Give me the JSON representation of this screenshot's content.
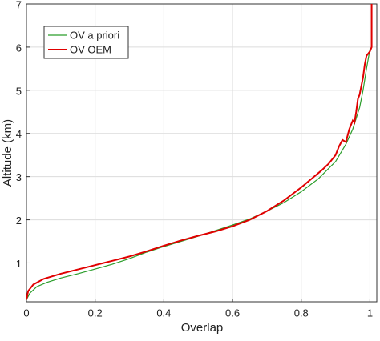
{
  "chart_data": {
    "type": "line",
    "xlabel": "Overlap",
    "ylabel": "Altitude (km)",
    "xlim": [
      0,
      1.02
    ],
    "ylim": [
      0.1,
      7
    ],
    "xticks": [
      0,
      0.2,
      0.4,
      0.6,
      0.8,
      1
    ],
    "yticks": [
      1,
      2,
      3,
      4,
      5,
      6,
      7
    ],
    "grid": true,
    "legend": "upper-left",
    "series": [
      {
        "name": "OV a priori",
        "color": "#2a9d2a",
        "x": [
          0,
          0.01,
          0.03,
          0.06,
          0.1,
          0.15,
          0.2,
          0.25,
          0.3,
          0.35,
          0.4,
          0.45,
          0.5,
          0.55,
          0.6,
          0.65,
          0.7,
          0.75,
          0.8,
          0.85,
          0.9,
          0.93,
          0.95,
          0.97,
          0.98,
          0.99,
          1.0
        ],
        "values": [
          0.15,
          0.3,
          0.45,
          0.55,
          0.65,
          0.75,
          0.86,
          0.97,
          1.1,
          1.25,
          1.38,
          1.5,
          1.62,
          1.75,
          1.88,
          2.02,
          2.2,
          2.4,
          2.65,
          2.95,
          3.35,
          3.75,
          4.1,
          4.6,
          5.0,
          5.5,
          5.95
        ]
      },
      {
        "name": "OV OEM",
        "color": "#e00000",
        "x": [
          0,
          0.005,
          0.02,
          0.05,
          0.1,
          0.15,
          0.2,
          0.25,
          0.3,
          0.35,
          0.4,
          0.45,
          0.5,
          0.55,
          0.6,
          0.65,
          0.7,
          0.75,
          0.8,
          0.83,
          0.86,
          0.88,
          0.9,
          0.91,
          0.92,
          0.93,
          0.94,
          0.95,
          0.955,
          0.96,
          0.965,
          0.97,
          0.975,
          0.98,
          0.985,
          0.99,
          1.0,
          1.005,
          1.005
        ],
        "values": [
          0.15,
          0.35,
          0.5,
          0.63,
          0.75,
          0.85,
          0.95,
          1.05,
          1.15,
          1.27,
          1.4,
          1.52,
          1.63,
          1.73,
          1.85,
          2.0,
          2.2,
          2.45,
          2.75,
          2.95,
          3.15,
          3.3,
          3.5,
          3.7,
          3.85,
          3.8,
          4.1,
          4.3,
          4.25,
          4.5,
          4.8,
          4.9,
          5.1,
          5.3,
          5.6,
          5.8,
          5.9,
          6.0,
          7
        ]
      }
    ]
  }
}
